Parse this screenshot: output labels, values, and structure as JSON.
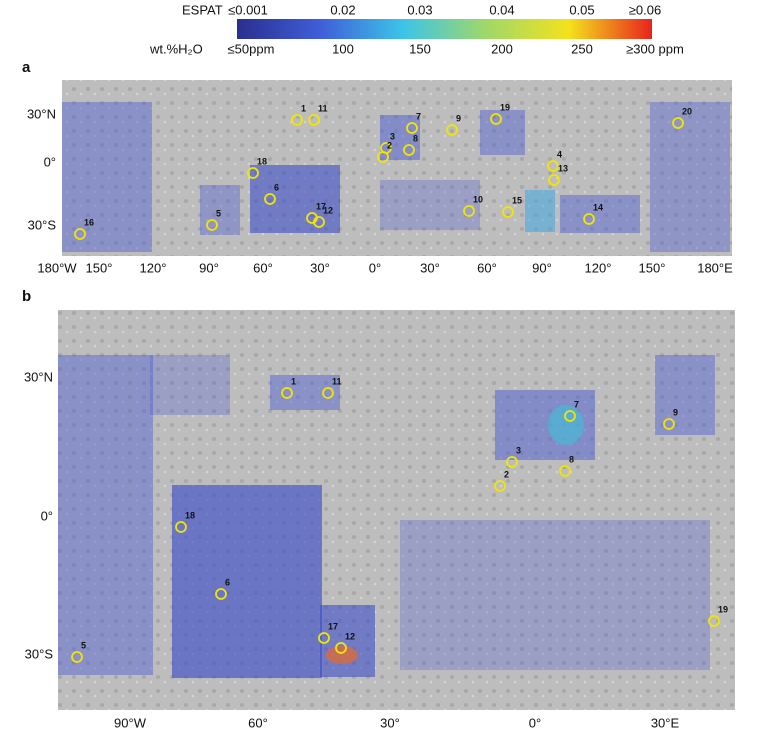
{
  "colorbar": {
    "espat_label": "ESPAT",
    "espat_ticks": [
      "≤0.001",
      "0.02",
      "0.03",
      "0.04",
      "0.05",
      "≥0.06"
    ],
    "water_label": "wt.%H₂O",
    "water_ticks": [
      "≤50ppm",
      "100",
      "150",
      "200",
      "250",
      "≥300 ppm"
    ]
  },
  "panels": [
    {
      "label": "a",
      "xticks": [
        "180°W",
        "150°",
        "120°",
        "90°",
        "60°",
        "30°",
        "0°",
        "30°",
        "60°",
        "90°",
        "120°",
        "150°",
        "180°E"
      ],
      "yticks": [
        "30°N",
        "0°",
        "30°S"
      ],
      "sites": [
        "1",
        "11",
        "7",
        "3",
        "2",
        "8",
        "9",
        "19",
        "20",
        "18",
        "4",
        "13",
        "6",
        "17",
        "12",
        "5",
        "16",
        "10",
        "15",
        "14"
      ]
    },
    {
      "label": "b",
      "xticks": [
        "90°W",
        "60°",
        "30°",
        "0°",
        "30°E"
      ],
      "yticks": [
        "30°N",
        "0°",
        "30°S"
      ],
      "sites": [
        "1",
        "11",
        "7",
        "3",
        "8",
        "2",
        "9",
        "18",
        "6",
        "19",
        "17",
        "12",
        "5"
      ]
    }
  ]
}
